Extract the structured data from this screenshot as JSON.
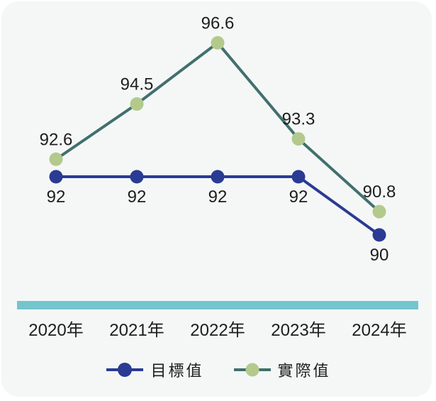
{
  "chart_data": {
    "type": "line",
    "categories": [
      "2020年",
      "2021年",
      "2022年",
      "2023年",
      "2024年"
    ],
    "series": [
      {
        "name": "目標值",
        "values": [
          92,
          92,
          92,
          92,
          90
        ],
        "color": "#2a3b94",
        "marker_color": "#2a3b94",
        "label_position": "below"
      },
      {
        "name": "實際值",
        "values": [
          92.6,
          94.5,
          96.6,
          93.3,
          90.8
        ],
        "color": "#41706d",
        "marker_color": "#b3ca8c",
        "label_position": "above"
      }
    ],
    "title": "",
    "xlabel": "",
    "ylabel": "",
    "ylim": [
      89.5,
      97.5
    ],
    "grid": false,
    "legend_position": "bottom",
    "colors": {
      "axis_bar": "#73c5ce",
      "card_background": "#f5f7f6",
      "page_background": "#ffffff",
      "text": "#1d1d1f"
    }
  }
}
